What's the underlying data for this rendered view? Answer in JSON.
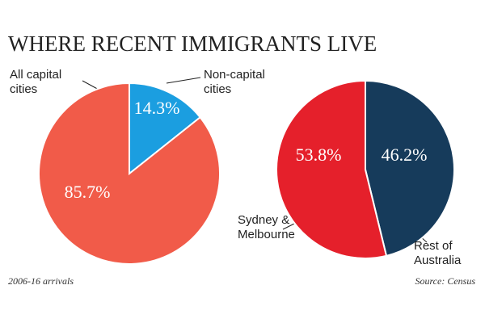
{
  "title": "WHERE RECENT IMMIGRANTS LIVE",
  "note": "2006-16 arrivals",
  "source": "Source: Census",
  "chart_data": [
    {
      "type": "pie",
      "categories": [
        "All capital cities",
        "Non-capital cities"
      ],
      "values": [
        85.7,
        14.3
      ],
      "value_labels": [
        "85.7%",
        "14.3%"
      ],
      "colors": [
        "#f15b49",
        "#1b9ee0"
      ]
    },
    {
      "type": "pie",
      "categories": [
        "Sydney & Melbourne",
        "Rest of Australia"
      ],
      "values": [
        53.8,
        46.2
      ],
      "value_labels": [
        "53.8%",
        "46.2%"
      ],
      "colors": [
        "#e5202b",
        "#163b5b"
      ]
    }
  ]
}
